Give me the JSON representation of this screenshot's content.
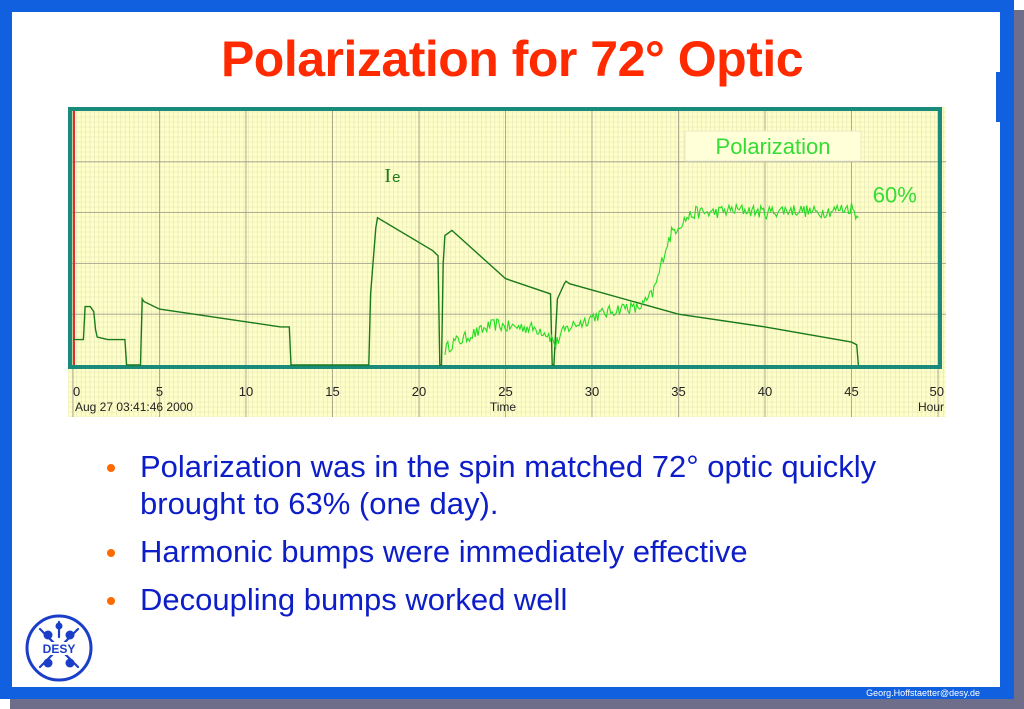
{
  "slide": {
    "title": "Polarization for 72° Optic",
    "bullets": [
      "Polarization was in the spin matched 72° optic quickly brought to 63% (one day).",
      "Harmonic bumps were immediately effective",
      "Decoupling bumps worked well"
    ],
    "footer_email": "Georg.Hoffstaetter@desy.de",
    "logo_text": "DESY",
    "colors": {
      "frame": "#1060e0",
      "title": "#ff2a00",
      "bullet_text": "#0d1ec8",
      "bullet_dot": "#ff6a00",
      "plot_background": "#ffffc8",
      "plot_border": "#1a8a7a",
      "current_line": "#1a7a1a",
      "polarization_line": "#22dd22",
      "annotation_text": "#33dd33"
    }
  },
  "chart_data": {
    "type": "line",
    "xlabel": "Time",
    "x_unit_label": "Hour",
    "start_timestamp": "Aug 27 03:41:46 2000",
    "xlim": [
      0,
      50
    ],
    "ylim": [
      0,
      100
    ],
    "x_ticks": [
      0,
      5,
      10,
      15,
      20,
      25,
      30,
      35,
      40,
      45,
      50
    ],
    "grid": true,
    "annotations": [
      {
        "text": "Polarization",
        "x": 40,
        "y": 85
      },
      {
        "text": "60%",
        "x": 47.5,
        "y": 64
      },
      {
        "text": "I",
        "subscript": "e",
        "x": 18,
        "y": 72
      }
    ],
    "series": [
      {
        "name": "Ie",
        "x": [
          0,
          0.6,
          0.7,
          1.0,
          1.2,
          1.3,
          1.4,
          2.0,
          3.0,
          3.1,
          3.9,
          4.0,
          4.1,
          5.0,
          10.0,
          12.0,
          12.5,
          12.6,
          17.1,
          17.2,
          17.5,
          17.6,
          20.8,
          21.1,
          21.2,
          21.3,
          21.4,
          21.5,
          21.9,
          25.0,
          27.6,
          27.7,
          27.8,
          28.0,
          28.4,
          28.5,
          28.7,
          35.0,
          40.0,
          45.0,
          45.3,
          45.4
        ],
        "y": [
          10,
          10,
          23,
          23,
          21,
          14,
          11,
          10,
          10,
          0,
          0,
          26,
          25,
          22,
          17,
          15,
          15,
          0,
          0,
          28,
          54,
          58,
          45,
          43,
          0,
          0,
          40,
          51,
          53,
          34,
          28,
          0,
          0,
          26,
          32,
          33,
          32,
          20,
          15,
          9,
          8,
          0
        ]
      },
      {
        "name": "Polarization",
        "x": [
          21.5,
          22.0,
          22.5,
          23.0,
          23.5,
          24.0,
          24.5,
          25.0,
          26.0,
          27.0,
          27.5,
          27.9,
          28.2,
          28.5,
          29.0,
          29.5,
          30.0,
          30.5,
          31.0,
          31.5,
          32.0,
          32.5,
          33.0,
          33.5,
          33.8,
          34.2,
          34.6,
          35.0,
          35.5,
          36.0,
          37.0,
          38.0,
          39.0,
          40.0,
          41.0,
          42.0,
          43.0,
          44.0,
          45.0,
          45.4
        ],
        "y": [
          6,
          9,
          10,
          12,
          13,
          15,
          16,
          15,
          15,
          14,
          12,
          8,
          12,
          14,
          16,
          17,
          19,
          20,
          21,
          22,
          23,
          22,
          24,
          28,
          34,
          45,
          52,
          55,
          58,
          60,
          60,
          61,
          61,
          60,
          61,
          61,
          60,
          61,
          62,
          58
        ]
      }
    ]
  }
}
